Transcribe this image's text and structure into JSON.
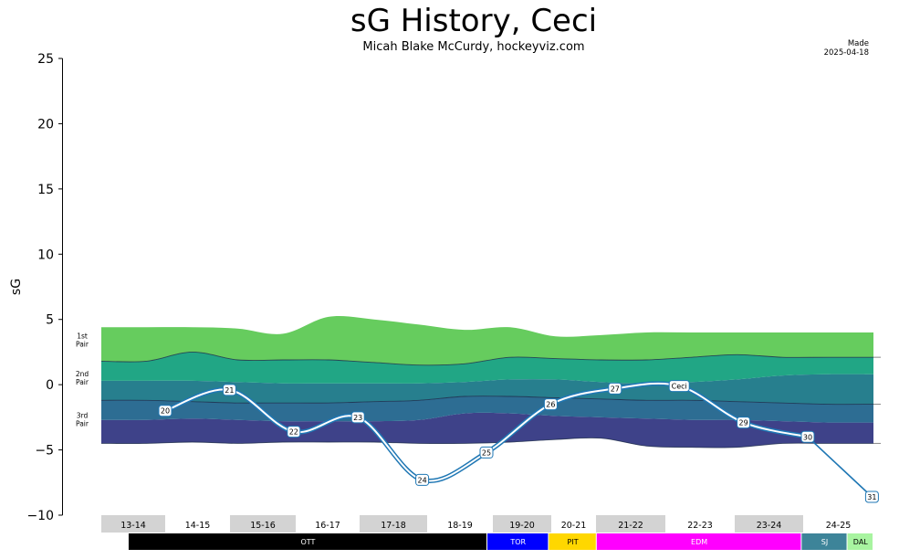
{
  "title": "sG History, Ceci",
  "subtitle": "Micah Blake McCurdy, hockeyviz.com",
  "made_label": "Made",
  "made_date": "2025-04-18",
  "chart_data": {
    "type": "line",
    "ylabel": "sG",
    "ylim": [
      -10,
      25
    ],
    "yticks": [
      -10,
      -5,
      0,
      5,
      10,
      15,
      20,
      25
    ],
    "player_label": "Ceci",
    "line_color": "#1f77b4",
    "points": [
      {
        "age": "20",
        "y": -2.0
      },
      {
        "age": "21",
        "y": -0.4
      },
      {
        "age": "22",
        "y": -3.6
      },
      {
        "age": "23",
        "y": -2.5
      },
      {
        "age": "24",
        "y": -7.3
      },
      {
        "age": "25",
        "y": -5.2
      },
      {
        "age": "26",
        "y": -1.5
      },
      {
        "age": "27",
        "y": -0.3
      },
      {
        "age": "Ceci",
        "y": -0.1
      },
      {
        "age": "29",
        "y": -2.9
      },
      {
        "age": "30",
        "y": -4.0
      },
      {
        "age": "31",
        "y": -8.6
      }
    ],
    "bands": {
      "labels": [
        {
          "line1": "1st",
          "line2": "Pair",
          "y": 3.2
        },
        {
          "line1": "2nd",
          "line2": "Pair",
          "y": 0.3
        },
        {
          "line1": "3rd",
          "line2": "Pair",
          "y": -2.9
        }
      ],
      "colors": [
        "#3e4289",
        "#2d6d93",
        "#277f8e",
        "#21a685",
        "#66cc5e"
      ],
      "boundaries": [
        {
          "name": "bottom",
          "y": [
            -4.5,
            -4.5,
            -4.4,
            -4.5,
            -4.4,
            -4.4,
            -4.4,
            -4.5,
            -4.5,
            -4.4,
            -4.2,
            -4.1,
            -4.7,
            -4.8,
            -4.8,
            -4.5,
            -4.5,
            -4.5
          ]
        },
        {
          "name": "b1",
          "y": [
            -2.7,
            -2.7,
            -2.6,
            -2.7,
            -2.8,
            -2.8,
            -2.8,
            -2.7,
            -2.2,
            -2.2,
            -2.4,
            -2.5,
            -2.6,
            -2.7,
            -2.7,
            -2.8,
            -2.9,
            -2.9
          ]
        },
        {
          "name": "b2",
          "y": [
            -1.2,
            -1.2,
            -1.3,
            -1.4,
            -1.4,
            -1.4,
            -1.3,
            -1.2,
            -0.9,
            -0.9,
            -1.0,
            -1.1,
            -1.2,
            -1.2,
            -1.3,
            -1.4,
            -1.5,
            -1.5
          ]
        },
        {
          "name": "b3",
          "y": [
            0.3,
            0.3,
            0.3,
            0.2,
            0.1,
            0.1,
            0.1,
            0.1,
            0.2,
            0.4,
            0.4,
            0.2,
            0.1,
            0.2,
            0.4,
            0.7,
            0.8,
            0.8
          ]
        },
        {
          "name": "b4",
          "y": [
            1.8,
            1.8,
            2.5,
            1.9,
            1.9,
            1.9,
            1.7,
            1.5,
            1.6,
            2.1,
            2.0,
            1.9,
            1.9,
            2.1,
            2.3,
            2.1,
            2.1,
            2.1
          ]
        },
        {
          "name": "top",
          "y": [
            4.4,
            4.4,
            4.4,
            4.3,
            3.9,
            5.2,
            5.0,
            4.6,
            4.2,
            4.4,
            3.7,
            3.8,
            4.0,
            4.0,
            4.0,
            4.0,
            4.0,
            4.0
          ]
        }
      ]
    },
    "seasons": [
      "13-14",
      "14-15",
      "15-16",
      "16-17",
      "17-18",
      "18-19",
      "19-20",
      "20-21",
      "21-22",
      "22-23",
      "23-24",
      "24-25"
    ],
    "season_shaded": [
      true,
      false,
      true,
      false,
      true,
      false,
      true,
      false,
      true,
      false,
      true,
      false
    ],
    "teams": [
      {
        "name": "OTT",
        "color": "#000000",
        "text_color": "#ffffff",
        "start": 0.4,
        "end": 5.65
      },
      {
        "name": "TOR",
        "color": "#0000ff",
        "text_color": "#ffffff",
        "start": 5.65,
        "end": 6.55
      },
      {
        "name": "PIT",
        "color": "#ffd700",
        "text_color": "#000000",
        "start": 6.55,
        "end": 7.25
      },
      {
        "name": "EDM",
        "color": "#ff00ff",
        "text_color": "#ffffff",
        "start": 7.25,
        "end": 10.25
      },
      {
        "name": "SJ",
        "color": "#3d8499",
        "text_color": "#ffffff",
        "start": 10.25,
        "end": 10.92
      },
      {
        "name": "DAL",
        "color": "#a8f4a0",
        "text_color": "#000000",
        "start": 10.92,
        "end": 11.3
      }
    ]
  }
}
